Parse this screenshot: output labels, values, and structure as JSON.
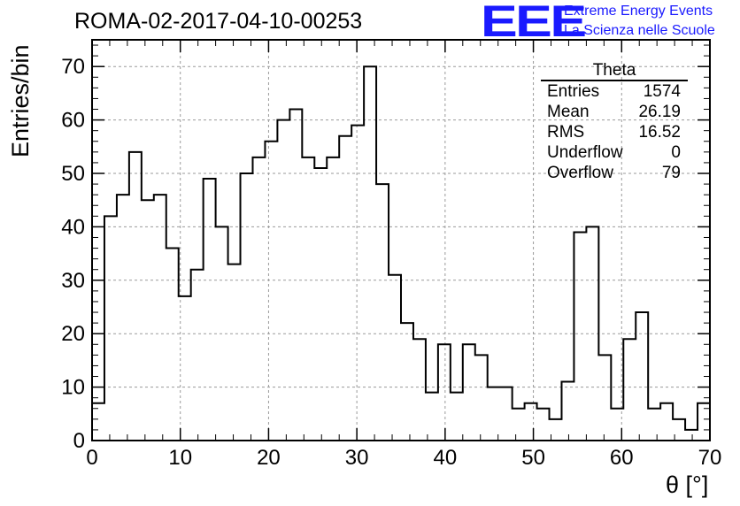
{
  "title": "ROMA-02-2017-04-10-00253",
  "logo": {
    "mark": "EEE",
    "line1": "Extreme Energy Events",
    "line2": "La Scienza nelle Scuole",
    "color": "#1a1aff"
  },
  "stats": {
    "title": "Theta",
    "rows": [
      {
        "label": "Entries",
        "value": "1574"
      },
      {
        "label": "Mean",
        "value": "26.19"
      },
      {
        "label": "RMS",
        "value": "16.52"
      },
      {
        "label": "Underflow",
        "value": "0"
      },
      {
        "label": "Overflow",
        "value": "79"
      }
    ]
  },
  "chart_data": {
    "type": "bar",
    "title": "ROMA-02-2017-04-10-00253",
    "xlabel": "θ [°]",
    "ylabel": "Entries/bin",
    "xlim": [
      0,
      70
    ],
    "ylim": [
      0,
      75
    ],
    "xticks": [
      0,
      10,
      20,
      30,
      40,
      50,
      60,
      70
    ],
    "yticks": [
      0,
      10,
      20,
      30,
      40,
      50,
      60,
      70
    ],
    "grid": true,
    "bin_width": 1.4,
    "values": [
      7,
      42,
      46,
      54,
      45,
      46,
      36,
      27,
      32,
      49,
      40,
      33,
      50,
      53,
      56,
      60,
      62,
      53,
      51,
      53,
      57,
      59,
      70,
      48,
      31,
      22,
      19,
      9,
      18,
      9,
      18,
      16,
      10,
      10,
      6,
      7,
      6,
      4,
      11,
      39,
      40,
      16,
      6,
      19,
      24,
      6,
      7,
      4,
      2,
      7
    ]
  }
}
